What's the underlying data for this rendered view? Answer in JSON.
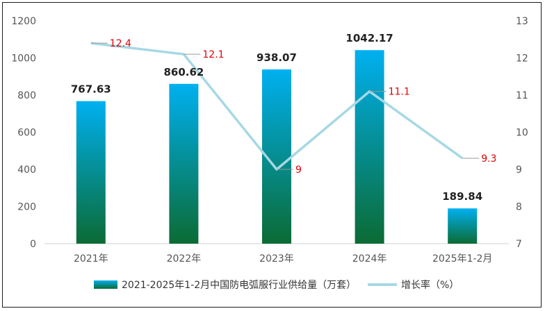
{
  "chart_data": {
    "type": "bar",
    "categories": [
      "2021年",
      "2022年",
      "2023年",
      "2024年",
      "2025年1-2月"
    ],
    "series": [
      {
        "name": "2021-2025年1-2月中国防电弧服行业供给量（万套）",
        "type": "bar",
        "axis": "left",
        "values": [
          767.63,
          860.62,
          938.07,
          1042.17,
          189.84
        ],
        "labels": [
          "767.63",
          "860.62",
          "938.07",
          "1042.17",
          "189.84"
        ]
      },
      {
        "name": "增长率（%）",
        "type": "line",
        "axis": "right",
        "values": [
          12.4,
          12.1,
          9,
          11.1,
          9.3
        ],
        "labels": [
          "12.4",
          "12.1",
          "9",
          "11.1",
          "9.3"
        ]
      }
    ],
    "y_left": {
      "min": 0,
      "max": 1200,
      "ticks": [
        "0",
        "200",
        "400",
        "600",
        "800",
        "1000",
        "1200"
      ]
    },
    "y_right": {
      "min": 7,
      "max": 13,
      "ticks": [
        "7",
        "8",
        "9",
        "10",
        "11",
        "12",
        "13"
      ]
    },
    "grid": false,
    "legend_position": "bottom",
    "colors": {
      "bar_top": "#00b0f0",
      "bar_bottom": "#0b6b34",
      "line": "#a6d8e4",
      "rate_label": "#e00000",
      "leader": "#9a9a9a"
    }
  }
}
